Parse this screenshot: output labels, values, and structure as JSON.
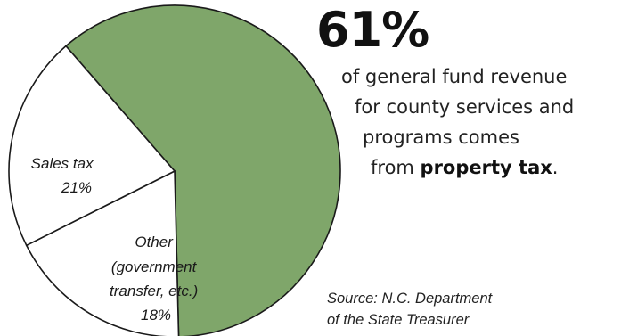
{
  "chart_data": {
    "type": "pie",
    "slices": [
      {
        "name": "Property tax",
        "value": 61,
        "label": "",
        "color": "#7fa66a"
      },
      {
        "name": "Other",
        "value": 18,
        "label": "Other (government transfer, etc.) 18%",
        "color": "#ffffff"
      },
      {
        "name": "Sales tax",
        "value": 21,
        "label": "Sales tax 21%",
        "color": "#ffffff"
      }
    ],
    "label_lines": {
      "sales": [
        "Sales tax",
        "21%"
      ],
      "other": [
        "Other",
        "(government",
        "transfer, etc.)",
        "18%"
      ]
    }
  },
  "headline": {
    "percent": "61%",
    "line1": "of general fund revenue",
    "line2": "for county services and",
    "line3": "programs comes",
    "line4_prefix": "from ",
    "line4_bold": "property tax",
    "line4_suffix": "."
  },
  "source": {
    "line1": "Source: N.C. Department",
    "line2": "of the State Treasurer"
  }
}
